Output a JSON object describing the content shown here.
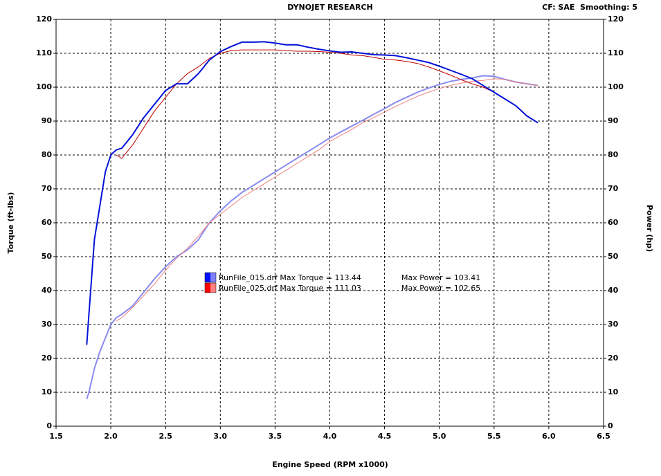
{
  "chart_data": {
    "type": "line",
    "title": "DYNOJET RESEARCH",
    "corner_note": "CF: SAE  Smoothing: 5",
    "x_label": "Engine Speed (RPM x1000)",
    "y_label": "Torque (ft-lbs)",
    "y2_label": "Power (hp)",
    "x": [
      1.78,
      1.8,
      1.85,
      1.9,
      1.95,
      2.0,
      2.05,
      2.1,
      2.2,
      2.3,
      2.4,
      2.5,
      2.6,
      2.7,
      2.8,
      2.9,
      3.0,
      3.1,
      3.2,
      3.3,
      3.4,
      3.5,
      3.6,
      3.7,
      3.8,
      3.9,
      4.0,
      4.1,
      4.2,
      4.3,
      4.4,
      4.5,
      4.6,
      4.7,
      4.8,
      4.9,
      5.0,
      5.1,
      5.2,
      5.3,
      5.4,
      5.5,
      5.6,
      5.7,
      5.8,
      5.9
    ],
    "series": [
      {
        "color": "#0010d8",
        "width": 2,
        "values": [
          24,
          33,
          55,
          65,
          75,
          80,
          81.5,
          82,
          86,
          91,
          95,
          99,
          101,
          101,
          104,
          108,
          110.5,
          112,
          113.3,
          113.3,
          113.4,
          113,
          112.5,
          112.5,
          111.8,
          111.2,
          110.7,
          110.3,
          110.4,
          110,
          109.6,
          109.5,
          109.3,
          108.7,
          108,
          107.3,
          106.2,
          105,
          103.8,
          102.5,
          100.5,
          98.5,
          96.5,
          94.5,
          91.5,
          89.5
        ]
      },
      {
        "color": "#c00000",
        "width": 1,
        "values": [
          null,
          null,
          null,
          null,
          null,
          null,
          80,
          79,
          83,
          88,
          93,
          97,
          101,
          104,
          106,
          108.5,
          110,
          110.8,
          111,
          111,
          111,
          111,
          110.8,
          110.6,
          110.6,
          110.5,
          110.3,
          110,
          109.5,
          109.3,
          108.8,
          108.2,
          108,
          107.6,
          107,
          106,
          104.8,
          103.6,
          102.2,
          101,
          100,
          98.5,
          96.5,
          94.5,
          91.5,
          89.5
        ]
      },
      {
        "color": "#8a8af0",
        "width": 2,
        "axis": "y2",
        "values": [
          8,
          10,
          17,
          22,
          26,
          30,
          32,
          33,
          35.5,
          39.5,
          43.5,
          47,
          50,
          52,
          55,
          60,
          63.5,
          66.5,
          69,
          71,
          73,
          75,
          77,
          79,
          81,
          83,
          85,
          86.8,
          88.5,
          90.2,
          92,
          93.7,
          95.5,
          97,
          98.5,
          99.7,
          100.8,
          101.7,
          102.3,
          102.7,
          103.4,
          103.2,
          102.3,
          101.5,
          101,
          100.5
        ]
      },
      {
        "color": "#f08080",
        "width": 1,
        "axis": "y2",
        "values": [
          null,
          null,
          null,
          null,
          null,
          null,
          31,
          32,
          35,
          38.5,
          42,
          46,
          49.5,
          52.5,
          56,
          60,
          62.5,
          65,
          67.5,
          69.5,
          71.5,
          73.5,
          75.5,
          77.5,
          79.5,
          81.5,
          84,
          85.8,
          87.5,
          89.5,
          91,
          92.7,
          94.3,
          95.8,
          97.3,
          98.5,
          99.6,
          100.5,
          101.2,
          101.7,
          102,
          102.5,
          102.3,
          101.5,
          101,
          100.5
        ]
      }
    ],
    "legend": [
      {
        "label": "RunFile_015.drf Max Torque = 113.44",
        "power_label": "Max Power = 103.41",
        "colors": [
          "#0010ff",
          "#8080ff"
        ]
      },
      {
        "label": "RunFile_025.drf Max Torque = 111.03",
        "power_label": "Max Power = 102.65",
        "colors": [
          "#ff0000",
          "#ff8080"
        ]
      }
    ],
    "xlim": [
      1.5,
      6.5
    ],
    "xticks": [
      1.5,
      {
        "value": 2,
        "label": "2.0"
      },
      2.5,
      {
        "value": 3,
        "label": "3.0"
      },
      3.5,
      {
        "value": 4,
        "label": "4.0"
      },
      4.5,
      {
        "value": 5,
        "label": "5.0"
      },
      5.5,
      {
        "value": 6,
        "label": "6.0"
      },
      6.5
    ],
    "ylim": [
      0,
      120
    ],
    "yticks": [
      0,
      10,
      20,
      30,
      40,
      50,
      60,
      70,
      80,
      90,
      100,
      110,
      120
    ],
    "y2lim": [
      0,
      120
    ],
    "y2ticks": [
      0,
      10,
      20,
      30,
      40,
      50,
      60,
      70,
      80,
      90,
      100,
      110,
      120
    ],
    "grid": true
  }
}
